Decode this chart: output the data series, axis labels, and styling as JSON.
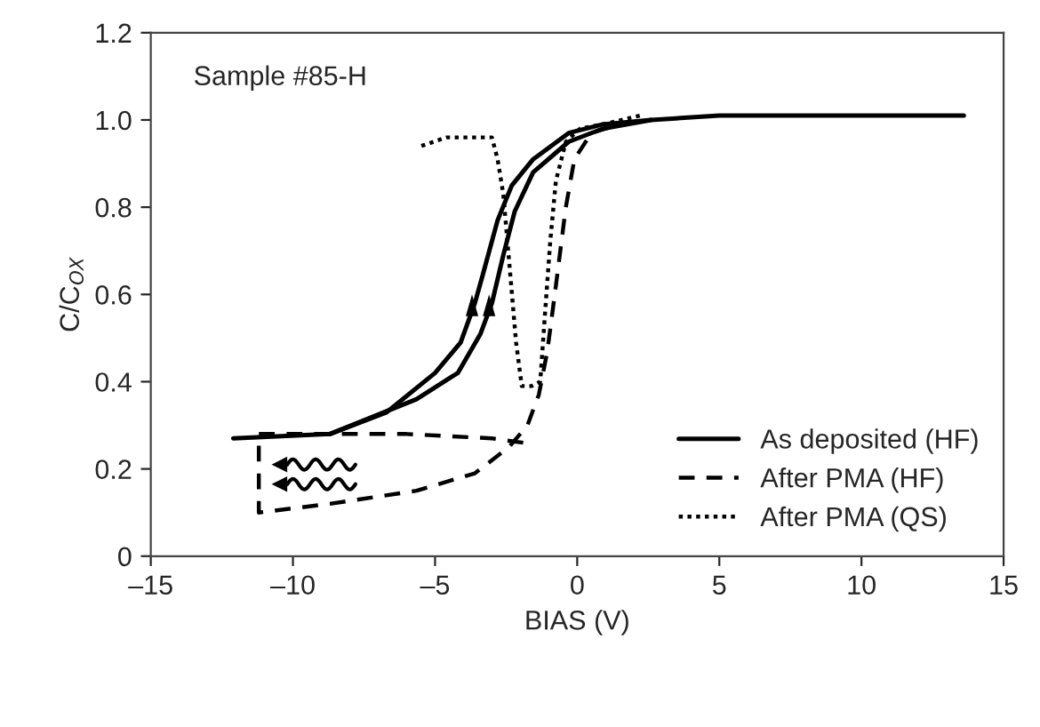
{
  "chart_data": {
    "type": "line",
    "xlabel": "BIAS (V)",
    "ylabel": "C/C$_{OX}$",
    "xlim": [
      -15,
      15
    ],
    "xticks": [
      {
        "value": -15,
        "label": "–15"
      },
      {
        "value": -10,
        "label": "–10"
      },
      {
        "value": -5,
        "label": "–5"
      },
      0,
      5,
      10,
      15
    ],
    "ylim": [
      0,
      1.2
    ],
    "yticks": [
      0,
      0.2,
      0.4,
      0.6,
      0.8,
      {
        "value": 1,
        "label": "1.0"
      },
      1.2
    ],
    "grid": false,
    "legend": "bottom right",
    "marker": "none",
    "annotations": [
      "Sample #85-H"
    ],
    "series": [
      {
        "name": "As deposited (HF)",
        "color": "#000000",
        "line_style": "solid",
        "x": [
          -12.1,
          -8.7,
          -6.7,
          -5.0,
          -4.1,
          -3.6,
          -3.3,
          -2.8,
          -2.3,
          -1.55,
          -0.3,
          0.9,
          2.6,
          5,
          10,
          13.6
        ],
        "values": [
          0.27,
          0.28,
          0.33,
          0.42,
          0.49,
          0.58,
          0.65,
          0.77,
          0.85,
          0.91,
          0.97,
          0.99,
          1.0,
          1.01,
          1.01,
          1.01
        ]
      },
      {
        "color": "#000000",
        "line_style": "solid",
        "x": [
          -8.7,
          -5.65,
          -4.2,
          -3.4,
          -3.0,
          -2.6,
          -2.2,
          -1.55,
          -0.3,
          0.9,
          2.6
        ],
        "values": [
          0.28,
          0.36,
          0.42,
          0.51,
          0.58,
          0.69,
          0.79,
          0.88,
          0.95,
          0.98,
          1.0
        ]
      },
      {
        "name": "After PMA (HF)",
        "color": "#000000",
        "line_style": "dashed",
        "x": [
          -1.9,
          -3.0,
          -6.0,
          -11.2,
          -11.2,
          -8.7,
          -5.65,
          -3.6,
          -2.4,
          -1.75,
          -1.35,
          -1.05,
          -0.75,
          -0.4,
          -0.1,
          0.5,
          1.5,
          2.5
        ],
        "values": [
          0.26,
          0.27,
          0.28,
          0.28,
          0.1,
          0.12,
          0.15,
          0.19,
          0.25,
          0.3,
          0.37,
          0.47,
          0.62,
          0.8,
          0.91,
          0.97,
          0.99,
          1.0
        ]
      },
      {
        "name": "After PMA (QS)",
        "color": "#000000",
        "line_style": "dotted",
        "x": [
          2.2,
          0.9,
          0.1,
          -0.4,
          -0.75,
          -0.95,
          -1.15,
          -1.3,
          -1.6,
          -1.95,
          -2.15,
          -2.4,
          -2.6,
          -2.8,
          -3.0,
          -3.8,
          -4.6,
          -5.5
        ],
        "values": [
          1.01,
          0.99,
          0.98,
          0.95,
          0.86,
          0.72,
          0.54,
          0.4,
          0.39,
          0.39,
          0.49,
          0.68,
          0.83,
          0.91,
          0.96,
          0.96,
          0.96,
          0.94
        ]
      }
    ]
  }
}
